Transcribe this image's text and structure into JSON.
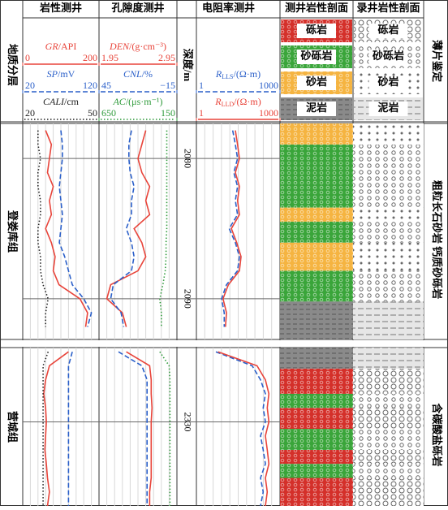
{
  "chart_data": {
    "type": "well_log",
    "strata_label": "地质分层",
    "depth_label": "深度/m",
    "thin_label": "薄片鉴定",
    "tracks": [
      {
        "title": "岩性测井",
        "curves": [
          {
            "name": "GR",
            "unit": "/API",
            "color": "#e8443a",
            "style": "solid",
            "log": false,
            "xlim": [
              0,
              200
            ],
            "xticks": [
              0,
              200
            ],
            "values": [
              [
                60,
                75,
                70,
                65,
                80,
                70,
                75,
                60,
                75,
                85,
                80,
                95,
                150,
                170,
                165
              ],
              [
                120,
                70,
                60,
                55,
                60,
                62,
                60,
                58,
                62,
                65,
                70,
                65
              ]
            ]
          },
          {
            "name": "SP",
            "unit": "/mV",
            "color": "#2a5fc9",
            "style": "dashed",
            "log": false,
            "xlim": [
              20,
              120
            ],
            "xticks": [
              20,
              120
            ],
            "values": [
              [
                70,
                72,
                72,
                70,
                68,
                70,
                72,
                70,
                68,
                75,
                80,
                85,
                100,
                110,
                105
              ],
              [
                85,
                80,
                80,
                80,
                80,
                80,
                80,
                80,
                80,
                80,
                80,
                80
              ]
            ]
          },
          {
            "name": "CALI",
            "unit": "/cm",
            "color": "#222222",
            "style": "dotted",
            "log": false,
            "xlim": [
              20,
              50
            ],
            "xticks": [
              20,
              50
            ],
            "values": [
              [
                26,
                26,
                27,
                26,
                26,
                27,
                27,
                26,
                26,
                27,
                27,
                28,
                30,
                29,
                29
              ],
              [
                30,
                28,
                28,
                28,
                28,
                28,
                28,
                28,
                28,
                28,
                28,
                28
              ]
            ]
          }
        ]
      },
      {
        "title": "孔隙度测井",
        "curves": [
          {
            "name": "DEN",
            "unit": "/(g·cm⁻³)",
            "color": "#e8443a",
            "style": "solid",
            "log": false,
            "xlim": [
              1.95,
              2.95
            ],
            "xticks": [
              1.95,
              2.95
            ],
            "values": [
              [
                2.55,
                2.5,
                2.45,
                2.5,
                2.6,
                2.55,
                2.6,
                2.4,
                2.5,
                2.55,
                2.45,
                2.1,
                2.05,
                2.25,
                2.3
              ],
              [
                2.3,
                2.6,
                2.62,
                2.62,
                2.63,
                2.62,
                2.62,
                2.62,
                2.62,
                2.62,
                2.6,
                2.6
              ]
            ]
          },
          {
            "name": "CNL",
            "unit": "/%",
            "color": "#2a5fc9",
            "style": "dashed",
            "log": false,
            "xlim": [
              45,
              -15
            ],
            "xticks": [
              45,
              {
                "value": -15,
                "label": "−15"
              }
            ],
            "values": [
              [
                20,
                22,
                22,
                21,
                18,
                20,
                20,
                24,
                20,
                18,
                20,
                34,
                36,
                28,
                26
              ],
              [
                30,
                12,
                8,
                8,
                8,
                8,
                8,
                8,
                8,
                8,
                8,
                8
              ]
            ]
          },
          {
            "name": "AC",
            "unit": "/(μs·m⁻¹)",
            "color": "#2e9a3a",
            "style": "dotted",
            "log": false,
            "xlim": [
              650,
              150
            ],
            "xticks": [
              650,
              150
            ],
            "values": [
              [
                215,
                215,
                215,
                215,
                215,
                215,
                215,
                215,
                220,
                220,
                225,
                240,
                260,
                250,
                250
              ],
              [
                260,
                200,
                195,
                195,
                195,
                195,
                195,
                195,
                195,
                195,
                195,
                195
              ]
            ]
          }
        ]
      },
      {
        "title": "电阻率测井",
        "curves": [
          {
            "name": "R",
            "sub": "LLS",
            "unit": "/(Ω·m)",
            "color": "#2a5fc9",
            "style": "dashed",
            "log": true,
            "xlim": [
              1,
              1000
            ],
            "xticks": [
              1,
              1000
            ],
            "values": [
              [
                20,
                25,
                30,
                22,
                30,
                25,
                30,
                15,
                25,
                35,
                30,
                12,
                8,
                10,
                10
              ],
              [
                5,
                100,
                200,
                300,
                250,
                300,
                200,
                250,
                300,
                200,
                250,
                200
              ]
            ]
          },
          {
            "name": "R",
            "sub": "LLD",
            "unit": "/(Ω·m)",
            "color": "#e8443a",
            "style": "solid",
            "log": true,
            "xlim": [
              1,
              1000
            ],
            "xticks": [
              1,
              1000
            ],
            "values": [
              [
                25,
                30,
                35,
                25,
                35,
                30,
                35,
                18,
                28,
                40,
                35,
                14,
                9,
                12,
                11
              ],
              [
                6,
                150,
                300,
                400,
                350,
                400,
                300,
                350,
                400,
                300,
                350,
                300
              ]
            ]
          }
        ]
      }
    ],
    "profile_titles": [
      "测井岩性剖面",
      "录井岩性剖面"
    ],
    "sections": [
      {
        "formation": "登娄库组",
        "thin_section": "粗粒长石砂岩 钙质砂砾岩",
        "ylim": [
          2077.5,
          2092.9
        ],
        "yticks": [
          2080,
          2090
        ],
        "depths": [
          2078,
          2079,
          2080,
          2081,
          2082,
          2083,
          2084,
          2085,
          2086,
          2087,
          2088,
          2089,
          2090,
          2091,
          2092
        ]
      },
      {
        "formation": "营城组",
        "thin_section": "含碳酸盐砾岩",
        "ylim": [
          2324.7,
          2336
        ],
        "yticks": [
          2330
        ],
        "depths": [
          2325,
          2326,
          2327,
          2328,
          2329,
          2330,
          2331,
          2332,
          2333,
          2334,
          2335,
          2336
        ]
      }
    ],
    "lithologies": [
      {
        "name": "砾岩",
        "color": "#d4302a",
        "intervals": [
          [],
          [
            [
              2326.2,
              2328
            ],
            [
              2329,
              2330.5
            ],
            [
              2332,
              2333
            ],
            [
              2334,
              2336
            ]
          ]
        ]
      },
      {
        "name": "砂砾岩",
        "color": "#3aa53a",
        "intervals": [
          [
            [
              2079,
              2083.5
            ],
            [
              2084.5,
              2086
            ],
            [
              2088,
              2090.2
            ]
          ],
          [
            [
              2328,
              2329
            ],
            [
              2330.5,
              2332
            ],
            [
              2333,
              2334
            ]
          ]
        ]
      },
      {
        "name": "砂岩",
        "color": "#f5b441",
        "intervals": [
          [
            [
              2077.5,
              2079
            ],
            [
              2083.5,
              2084.5
            ],
            [
              2086,
              2088
            ]
          ],
          []
        ]
      },
      {
        "name": "泥岩",
        "color": "#8a8a8a",
        "intervals": [
          [
            [
              2090.2,
              2092.9
            ]
          ],
          [
            [
              2324.7,
              2326.2
            ]
          ]
        ]
      }
    ]
  }
}
